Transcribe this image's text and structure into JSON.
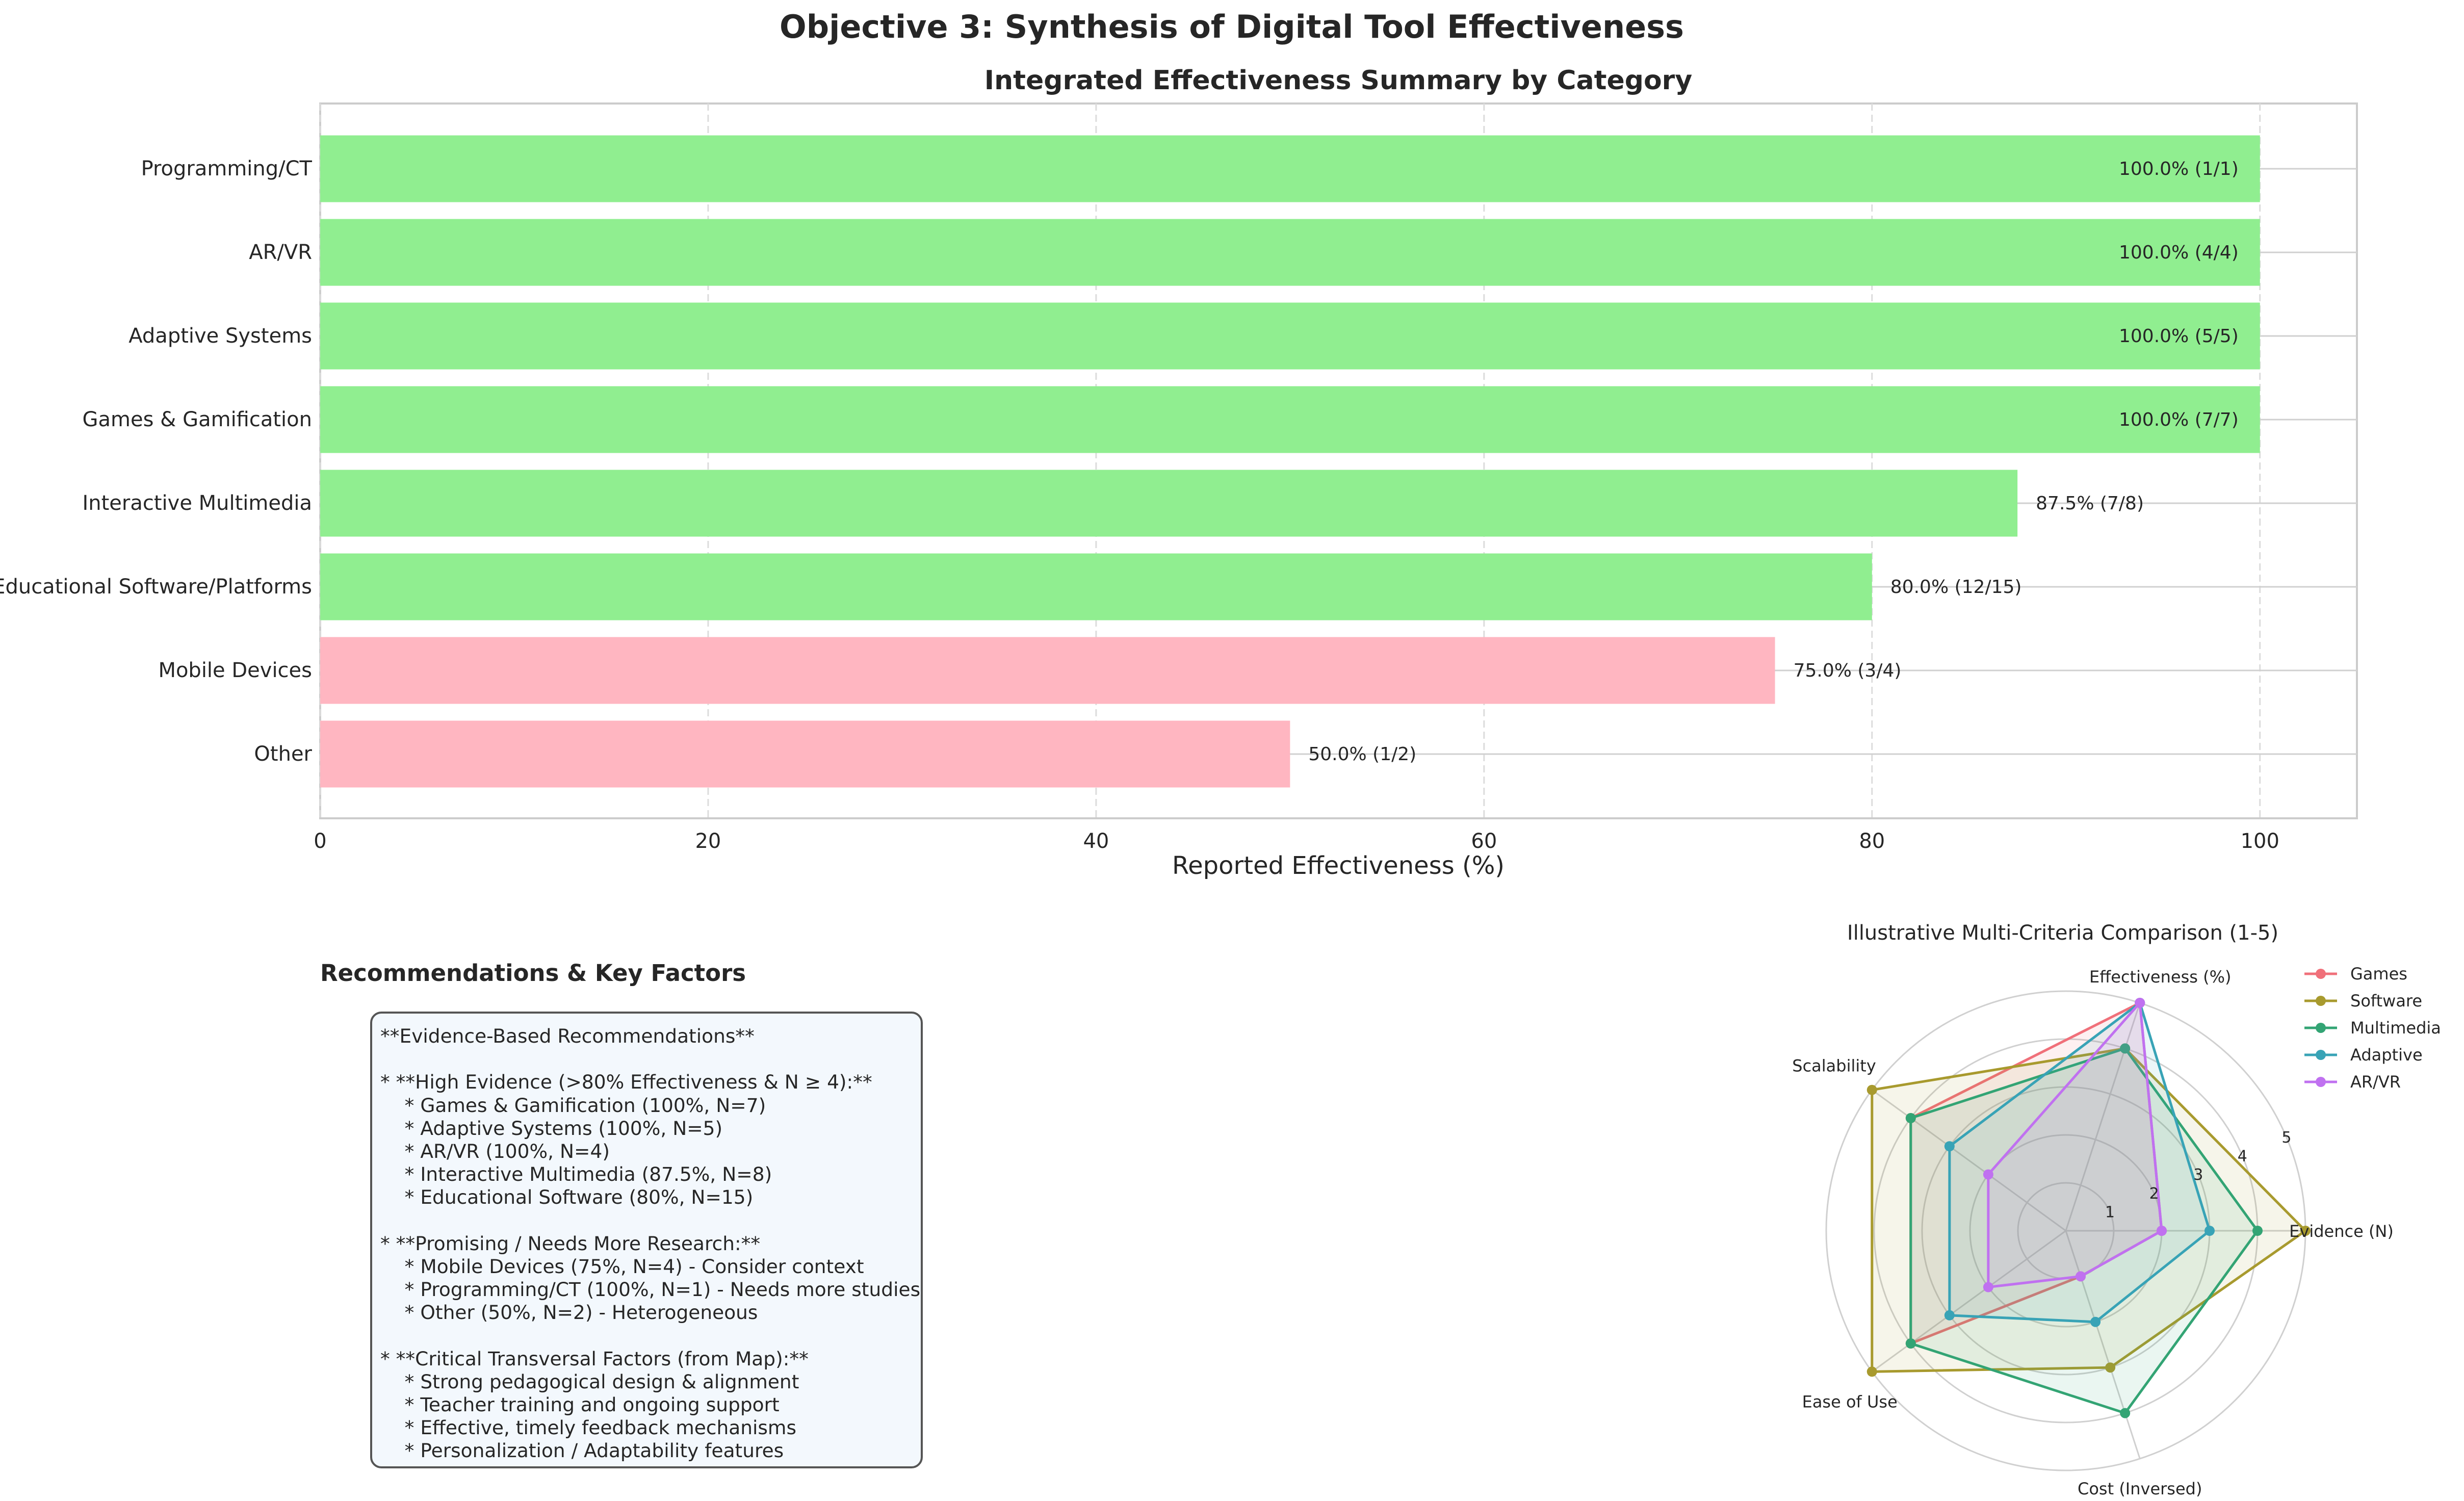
{
  "figure": {
    "suptitle": "Objective 3: Synthesis of Digital Tool Effectiveness"
  },
  "colors": {
    "high": "#90ee90",
    "low": "#ffb6c1",
    "grid": "#dcdcdc",
    "spine": "#cccccc"
  },
  "chart_data": [
    {
      "type": "bar",
      "orientation": "horizontal",
      "title": "Integrated Effectiveness Summary by Category",
      "xlabel": "Reported Effectiveness (%)",
      "ylabel": "",
      "xlim": [
        0,
        105
      ],
      "xticks": [
        0,
        20,
        40,
        60,
        80,
        100
      ],
      "grid": true,
      "categories": [
        "Programming/CT",
        "AR/VR",
        "Adaptive Systems",
        "Games & Gamification",
        "Interactive Multimedia",
        "Educational Software/Platforms",
        "Mobile Devices",
        "Other"
      ],
      "values": [
        100,
        100,
        100,
        100,
        87.5,
        80,
        75,
        50
      ],
      "labels": [
        "100.0% (1/1)",
        "100.0% (4/4)",
        "100.0% (5/5)",
        "100.0% (7/7)",
        "87.5% (7/8)",
        "80.0% (12/15)",
        "75.0% (3/4)",
        "50.0% (1/2)"
      ],
      "color_groups": [
        "high",
        "high",
        "high",
        "high",
        "high",
        "high",
        "low",
        "low"
      ]
    },
    {
      "type": "radar",
      "title": "Illustrative Multi-Criteria Comparison (1-5)",
      "axes": [
        "Evidence (N)",
        "Effectiveness (%)",
        "Scalability",
        "Ease of Use",
        "Cost (Inversed)"
      ],
      "rmax": 5,
      "radial_ticks": [
        1,
        2,
        3,
        4,
        5
      ],
      "legend_position": "upper-right",
      "series": [
        {
          "name": "Games",
          "color": "#f0707a",
          "values": [
            2,
            5,
            4,
            4,
            1
          ]
        },
        {
          "name": "Software",
          "color": "#a89a2e",
          "values": [
            5,
            4,
            5,
            5,
            3
          ]
        },
        {
          "name": "Multimedia",
          "color": "#33a474",
          "values": [
            4,
            4,
            4,
            4,
            4
          ]
        },
        {
          "name": "Adaptive",
          "color": "#38a3b6",
          "values": [
            3,
            5,
            3,
            3,
            2
          ]
        },
        {
          "name": "AR/VR",
          "color": "#c071f0",
          "values": [
            2,
            5,
            2,
            2,
            1
          ]
        }
      ]
    }
  ],
  "recommendations": {
    "title": "Recommendations & Key Factors",
    "lines": [
      "**Evidence-Based Recommendations**",
      "",
      "* **High Evidence (>80% Effectiveness & N ≥ 4):**",
      "    * Games & Gamification (100%, N=7)",
      "    * Adaptive Systems (100%, N=5)",
      "    * AR/VR (100%, N=4)",
      "    * Interactive Multimedia (87.5%, N=8)",
      "    * Educational Software (80%, N=15)",
      "",
      "* **Promising / Needs More Research:**",
      "    * Mobile Devices (75%, N=4) - Consider context",
      "    * Programming/CT (100%, N=1) - Needs more studies",
      "    * Other (50%, N=2) - Heterogeneous",
      "",
      "* **Critical Transversal Factors (from Map):**",
      "    * Strong pedagogical design & alignment",
      "    * Teacher training and ongoing support",
      "    * Effective, timely feedback mechanisms",
      "    * Personalization / Adaptability features"
    ]
  }
}
